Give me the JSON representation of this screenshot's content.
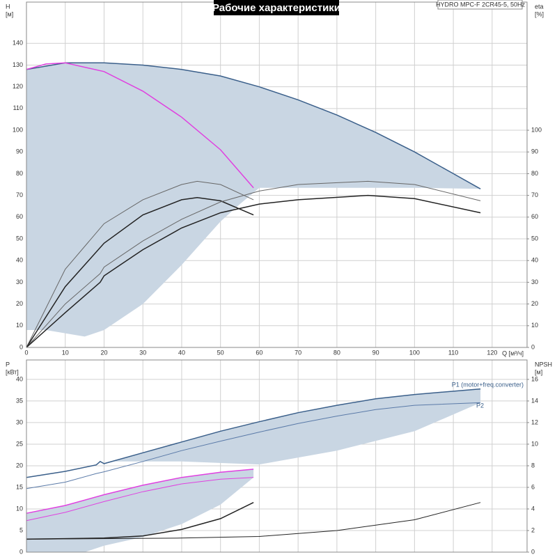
{
  "title": "Рабочие характеристики",
  "model": "HYDRO MPC-F 2CR45-5, 50Hz",
  "chart_data": [
    {
      "type": "line",
      "xlabel": "Q [м³/ч]",
      "ylabel": "H",
      "yunit": "[м]",
      "y2label": "eta",
      "y2unit": "[%]",
      "xlim": [
        0,
        129
      ],
      "xticks": [
        0,
        10,
        20,
        30,
        40,
        50,
        60,
        70,
        80,
        90,
        100,
        110,
        120
      ],
      "ylim": [
        0,
        159
      ],
      "yticks": [
        0,
        10,
        20,
        30,
        40,
        50,
        60,
        70,
        80,
        90,
        100,
        110,
        120,
        130,
        140
      ],
      "y2lim": [
        0,
        159
      ],
      "y2ticks": [
        0,
        10,
        20,
        30,
        40,
        50,
        60,
        70,
        80,
        90,
        100
      ],
      "grid": true,
      "series": [
        {
          "style": "area",
          "color": "#c9d6e3",
          "x": [
            0,
            10,
            20,
            30,
            40,
            50,
            60,
            70,
            80,
            90,
            100,
            110,
            117,
            100,
            60,
            55,
            50,
            45,
            40,
            30,
            20,
            15,
            5,
            0
          ],
          "values": [
            128,
            131,
            131,
            130,
            128,
            125,
            120,
            114,
            107,
            99,
            90,
            80,
            73,
            73.5,
            73.5,
            66,
            58,
            48,
            38,
            20,
            8,
            5,
            8,
            8
          ]
        },
        {
          "style": "line",
          "color": "#3a5f8a",
          "width": 1.5,
          "x": [
            0,
            10,
            20,
            30,
            40,
            50,
            60,
            70,
            80,
            90,
            100,
            110,
            117
          ],
          "values": [
            128,
            131,
            131,
            130,
            128,
            125,
            120,
            114,
            107,
            99,
            90,
            80,
            73
          ]
        },
        {
          "style": "line",
          "color": "#e040e0",
          "width": 1.5,
          "x": [
            0,
            5,
            10,
            20,
            30,
            40,
            50,
            58.5
          ],
          "values": [
            128,
            130.5,
            131,
            127,
            118,
            106,
            91,
            73.5
          ]
        },
        {
          "style": "line",
          "color": "#666666",
          "width": 1,
          "axis": "y2",
          "x": [
            0,
            10,
            20,
            30,
            40,
            44,
            50,
            58.5
          ],
          "values": [
            0,
            36,
            57,
            68,
            75,
            76.5,
            75,
            68
          ]
        },
        {
          "style": "line",
          "color": "#222222",
          "width": 1.5,
          "axis": "y2",
          "x": [
            0,
            10,
            20,
            30,
            40,
            44,
            50,
            58.5
          ],
          "values": [
            0,
            28,
            48,
            61,
            68,
            69,
            67.5,
            61
          ]
        },
        {
          "style": "line",
          "color": "#666666",
          "width": 1,
          "axis": "y2",
          "x": [
            0,
            10,
            19,
            20,
            30,
            40,
            50,
            60,
            70,
            88,
            100,
            117
          ],
          "values": [
            0,
            20,
            34,
            37,
            49,
            59,
            67,
            72,
            75,
            76.5,
            75,
            67.5
          ]
        },
        {
          "style": "line",
          "color": "#222222",
          "width": 1.5,
          "axis": "y2",
          "x": [
            0,
            10,
            19,
            20,
            30,
            40,
            50,
            60,
            70,
            88,
            100,
            117
          ],
          "values": [
            0,
            16,
            30,
            33,
            45,
            55,
            62,
            66,
            68,
            70,
            68.5,
            62
          ]
        }
      ]
    },
    {
      "type": "line",
      "ylabel": "P",
      "yunit": "[кВт]",
      "y2label": "NPSH",
      "y2unit": "[м]",
      "annotations": [
        "P1 (motor+freq.converter)",
        "P2"
      ],
      "xlim": [
        0,
        129
      ],
      "xticks": [
        0,
        10,
        20,
        30,
        40,
        50,
        60,
        70,
        80,
        90,
        100,
        110,
        120
      ],
      "ylim": [
        0,
        44.5
      ],
      "yticks": [
        0,
        5,
        10,
        15,
        20,
        25,
        30,
        35,
        40
      ],
      "y2lim": [
        0,
        17.8
      ],
      "y2ticks": [
        0,
        2,
        4,
        6,
        8,
        10,
        12,
        14,
        16
      ],
      "grid": true,
      "series": [
        {
          "style": "area",
          "color": "#c9d6e3",
          "x": [
            22,
            30,
            40,
            50,
            60,
            70,
            80,
            90,
            100,
            117,
            117,
            100,
            80,
            60,
            40,
            22
          ],
          "values": [
            21,
            23,
            25.5,
            28,
            30.2,
            32.3,
            34,
            35.5,
            36.5,
            37.8,
            34.6,
            28,
            23.5,
            20.3,
            21,
            21
          ]
        },
        {
          "style": "area",
          "color": "#c9d6e3",
          "x": [
            0,
            10,
            20,
            30,
            40,
            50,
            58.5,
            58.5,
            50,
            40,
            30,
            20,
            15,
            0
          ],
          "values": [
            9,
            10.8,
            13.3,
            15.5,
            17.3,
            18.5,
            19.2,
            17.3,
            11,
            6.5,
            3.5,
            1.5,
            0,
            0
          ]
        },
        {
          "style": "line",
          "color": "#3a5f8a",
          "width": 1.5,
          "x": [
            0,
            10,
            18,
            19,
            20,
            30,
            40,
            50,
            60,
            70,
            80,
            90,
            100,
            117
          ],
          "values": [
            17.3,
            18.7,
            20.2,
            21,
            20.5,
            23,
            25.5,
            28,
            30.2,
            32.3,
            34,
            35.5,
            36.5,
            37.8
          ]
        },
        {
          "style": "line",
          "color": "#5a7aa8",
          "width": 1,
          "x": [
            0,
            10,
            18,
            20,
            30,
            40,
            50,
            60,
            70,
            80,
            90,
            100,
            117
          ],
          "values": [
            14.7,
            16.2,
            18.2,
            18.6,
            21,
            23.5,
            25.7,
            27.8,
            29.8,
            31.5,
            33,
            34,
            34.6
          ]
        },
        {
          "style": "line",
          "color": "#e040e0",
          "width": 1.5,
          "x": [
            0,
            10,
            20,
            30,
            40,
            50,
            58.5
          ],
          "values": [
            9,
            10.8,
            13.3,
            15.5,
            17.3,
            18.5,
            19.2
          ]
        },
        {
          "style": "line",
          "color": "#e040e0",
          "width": 1,
          "x": [
            0,
            10,
            20,
            30,
            40,
            50,
            58.5
          ],
          "values": [
            7.3,
            9.2,
            11.7,
            14,
            15.8,
            16.9,
            17.3
          ]
        },
        {
          "style": "line",
          "color": "#222222",
          "width": 1.5,
          "axis": "y2",
          "x": [
            0,
            20,
            30,
            40,
            50,
            58.5
          ],
          "values": [
            1.2,
            1.3,
            1.5,
            2.1,
            3.1,
            4.6
          ]
        },
        {
          "style": "line",
          "color": "#222222",
          "width": 1,
          "axis": "y2",
          "x": [
            0,
            40,
            60,
            80,
            100,
            117
          ],
          "values": [
            1.2,
            1.3,
            1.45,
            2.0,
            3.0,
            4.6
          ]
        }
      ]
    }
  ]
}
